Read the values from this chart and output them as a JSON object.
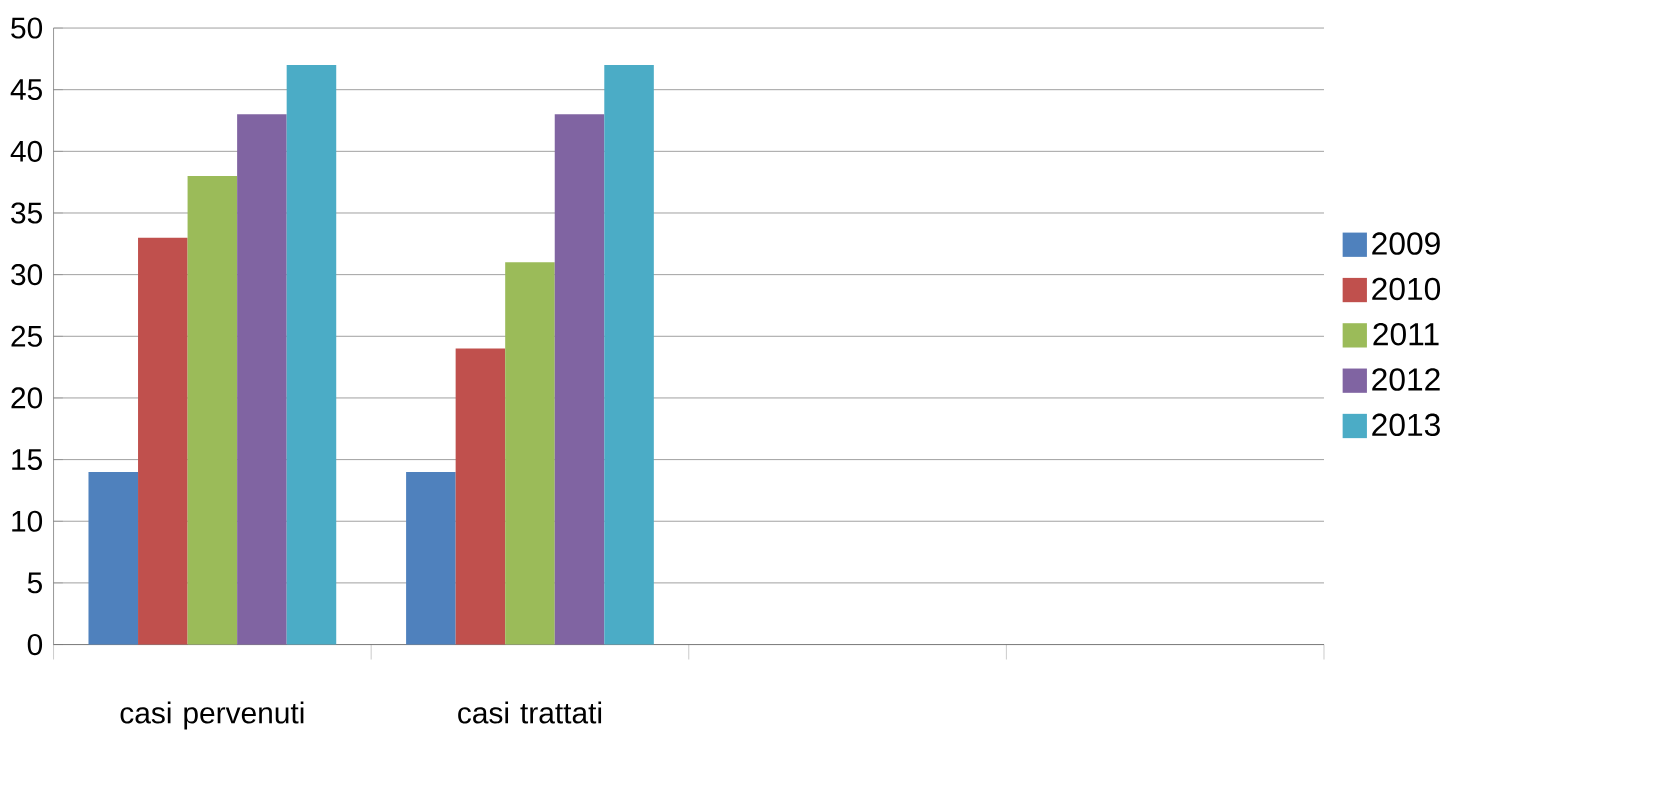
{
  "chart_data": {
    "type": "bar",
    "categories": [
      "casi pervenuti",
      "casi trattati",
      null,
      null
    ],
    "series": [
      {
        "name": "2009",
        "color": "#4f81bd",
        "values": [
          14,
          14,
          null,
          null
        ]
      },
      {
        "name": "2010",
        "color": "#c0504d",
        "values": [
          33,
          24,
          null,
          null
        ]
      },
      {
        "name": "2011",
        "color": "#9bbb59",
        "values": [
          38,
          31,
          null,
          null
        ]
      },
      {
        "name": "2012",
        "color": "#8064a2",
        "values": [
          43,
          43,
          null,
          null
        ]
      },
      {
        "name": "2013",
        "color": "#4bacc6",
        "values": [
          47,
          47,
          null,
          null
        ]
      }
    ],
    "ylim": [
      0,
      50
    ],
    "yticks": [
      0,
      5,
      10,
      15,
      20,
      25,
      30,
      35,
      40,
      45,
      50
    ],
    "grid": "y",
    "legend": "right"
  }
}
